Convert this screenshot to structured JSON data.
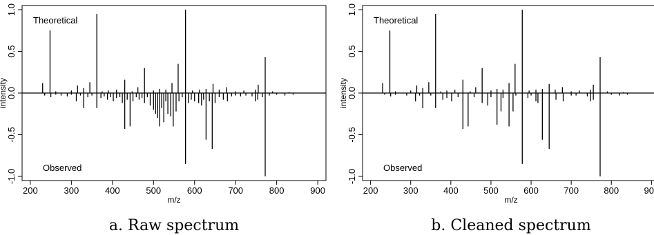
{
  "chart_data": [
    {
      "type": "bar",
      "caption": "a. Raw spectrum",
      "xlabel": "m/z",
      "ylabel": "intensity",
      "xlim": [
        180,
        920
      ],
      "ylim": [
        -1.05,
        1.05
      ],
      "xticks": [
        200,
        300,
        400,
        500,
        600,
        700,
        800,
        900
      ],
      "yticks": [
        -1.0,
        -0.5,
        0.0,
        0.5,
        1.0
      ],
      "yticklabels": [
        "-1.0",
        "-0.5",
        "0.0",
        "0.5",
        "1.0"
      ],
      "annotations": {
        "top": "Theoretical",
        "bottom": "Observed"
      },
      "grid": false,
      "series": [
        {
          "name": "Theoretical",
          "x": [
            230,
            248,
            262,
            300,
            315,
            330,
            345,
            362,
            375,
            390,
            410,
            430,
            448,
            462,
            478,
            500,
            515,
            530,
            545,
            560,
            578,
            595,
            612,
            628,
            645,
            660,
            678,
            700,
            720,
            748,
            755,
            772,
            790,
            830
          ],
          "y": [
            0.12,
            0.75,
            0.02,
            0.03,
            0.09,
            0.06,
            0.13,
            0.95,
            0.02,
            0.03,
            0.04,
            0.16,
            0.02,
            0.07,
            0.3,
            0.03,
            0.05,
            0.04,
            0.12,
            0.35,
            1.0,
            0.03,
            0.04,
            0.05,
            0.11,
            0.04,
            0.07,
            0.02,
            0.03,
            0.04,
            0.1,
            0.43,
            0.02,
            0.01
          ]
        },
        {
          "name": "Observed",
          "x": [
            235,
            250,
            262,
            275,
            290,
            300,
            312,
            322,
            330,
            340,
            350,
            362,
            372,
            380,
            388,
            395,
            402,
            410,
            418,
            424,
            430,
            436,
            443,
            450,
            458,
            465,
            472,
            478,
            485,
            492,
            500,
            505,
            510,
            515,
            520,
            525,
            530,
            535,
            542,
            548,
            555,
            562,
            570,
            578,
            585,
            592,
            600,
            610,
            617,
            622,
            628,
            636,
            643,
            650,
            660,
            670,
            680,
            690,
            700,
            712,
            725,
            740,
            748,
            754,
            765,
            772,
            782,
            800,
            820,
            840
          ],
          "y": [
            -0.03,
            -0.05,
            -0.02,
            -0.03,
            -0.04,
            -0.02,
            -0.1,
            -0.03,
            -0.18,
            -0.05,
            -0.03,
            -0.18,
            -0.06,
            -0.04,
            -0.08,
            -0.05,
            -0.1,
            -0.06,
            -0.05,
            -0.12,
            -0.43,
            -0.08,
            -0.4,
            -0.1,
            -0.05,
            -0.08,
            -0.06,
            -0.12,
            -0.05,
            -0.15,
            -0.2,
            -0.25,
            -0.3,
            -0.4,
            -0.18,
            -0.35,
            -0.1,
            -0.25,
            -0.28,
            -0.4,
            -0.22,
            -0.1,
            -0.05,
            -0.85,
            -0.12,
            -0.08,
            -0.1,
            -0.12,
            -0.15,
            -0.08,
            -0.56,
            -0.1,
            -0.67,
            -0.12,
            -0.05,
            -0.08,
            -0.1,
            -0.04,
            -0.03,
            -0.04,
            -0.03,
            -0.04,
            -0.1,
            -0.08,
            -0.05,
            -1.0,
            -0.03,
            -0.02,
            -0.03,
            -0.02
          ]
        }
      ]
    },
    {
      "type": "bar",
      "caption": "b. Cleaned spectrum",
      "xlabel": "m/z",
      "ylabel": "intensity",
      "xlim": [
        180,
        920
      ],
      "ylim": [
        -1.05,
        1.05
      ],
      "xticks": [
        200,
        300,
        400,
        500,
        600,
        700,
        800,
        900
      ],
      "yticks": [
        -1.0,
        -0.5,
        0.0,
        0.5,
        1.0
      ],
      "yticklabels": [
        "-1.0",
        "-0.5",
        "0.0",
        "0.5",
        "1.0"
      ],
      "annotations": {
        "top": "Theoretical",
        "bottom": "Observed"
      },
      "grid": false,
      "series": [
        {
          "name": "Theoretical",
          "x": [
            230,
            248,
            262,
            300,
            315,
            330,
            345,
            362,
            375,
            390,
            410,
            430,
            448,
            462,
            478,
            500,
            515,
            530,
            545,
            560,
            578,
            595,
            612,
            628,
            645,
            660,
            678,
            700,
            720,
            748,
            755,
            772,
            790,
            830
          ],
          "y": [
            0.12,
            0.75,
            0.02,
            0.03,
            0.09,
            0.06,
            0.13,
            0.95,
            0.02,
            0.03,
            0.04,
            0.16,
            0.02,
            0.07,
            0.3,
            0.03,
            0.05,
            0.04,
            0.12,
            0.35,
            1.0,
            0.03,
            0.04,
            0.05,
            0.11,
            0.04,
            0.07,
            0.02,
            0.03,
            0.04,
            0.1,
            0.43,
            0.02,
            0.01
          ]
        },
        {
          "name": "Observed",
          "x": [
            235,
            250,
            262,
            290,
            312,
            322,
            330,
            350,
            362,
            380,
            390,
            402,
            418,
            430,
            443,
            458,
            478,
            492,
            500,
            515,
            525,
            530,
            545,
            555,
            562,
            578,
            592,
            600,
            612,
            617,
            628,
            645,
            662,
            680,
            700,
            712,
            740,
            748,
            755,
            772,
            800,
            820,
            840
          ],
          "y": [
            -0.02,
            -0.04,
            -0.02,
            -0.03,
            -0.1,
            -0.03,
            -0.18,
            -0.03,
            -0.18,
            -0.08,
            -0.06,
            -0.1,
            -0.05,
            -0.43,
            -0.4,
            -0.05,
            -0.12,
            -0.15,
            -0.05,
            -0.38,
            -0.22,
            -0.06,
            -0.4,
            -0.22,
            -0.03,
            -0.85,
            -0.06,
            -0.03,
            -0.1,
            -0.12,
            -0.56,
            -0.67,
            -0.08,
            -0.1,
            -0.03,
            -0.03,
            -0.04,
            -0.1,
            -0.08,
            -1.0,
            -0.02,
            -0.03,
            -0.02
          ]
        }
      ]
    }
  ]
}
